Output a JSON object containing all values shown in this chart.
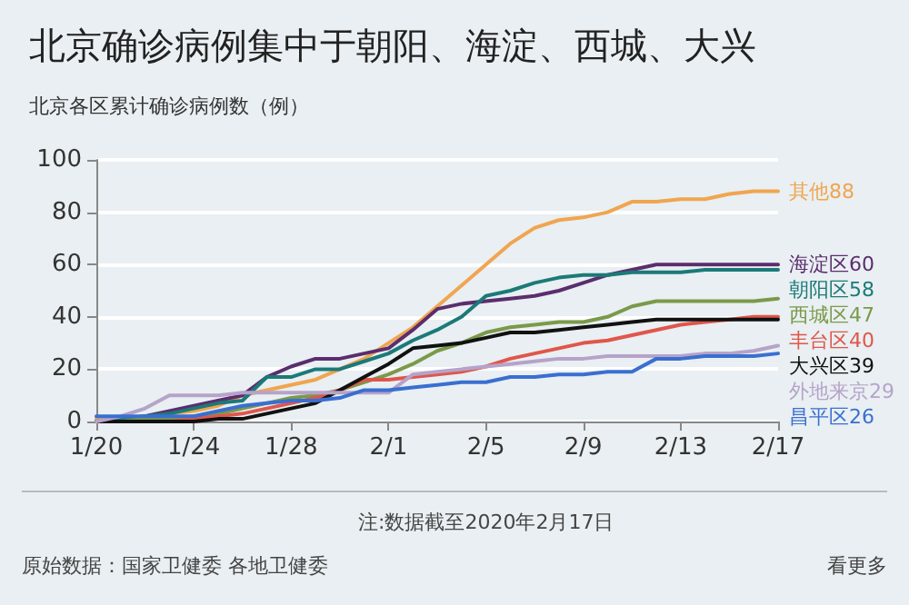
{
  "chart_data": {
    "type": "line",
    "title": "北京确诊病例集中于朝阳、海淀、西城、大兴",
    "subtitle": "北京各区累计确诊病例数（例）",
    "x": [
      "--01-20",
      "--01-21",
      "--01-22",
      "--01-23",
      "--01-24",
      "--01-25",
      "--01-26",
      "--01-27",
      "--01-28",
      "--01-29",
      "--01-30",
      "--01-31",
      "--02-01",
      "--02-02",
      "--02-03",
      "--02-04",
      "--02-05",
      "--02-06",
      "--02-07",
      "--02-08",
      "--02-09",
      "--02-10",
      "--02-11",
      "--02-12",
      "--02-13",
      "--02-14",
      "--02-15",
      "--02-16",
      "--02-17"
    ],
    "series": [
      {
        "name": "其他88",
        "color": "#f0a54f",
        "values": [
          1,
          1,
          2,
          3,
          4,
          6,
          10,
          12,
          14,
          16,
          20,
          24,
          30,
          36,
          44,
          52,
          60,
          68,
          74,
          77,
          78,
          80,
          84,
          84,
          85,
          85,
          87,
          88,
          88
        ]
      },
      {
        "name": "海淀区60",
        "color": "#5b2d6e",
        "values": [
          0,
          1,
          2,
          4,
          6,
          8,
          10,
          17,
          21,
          24,
          24,
          26,
          28,
          35,
          43,
          45,
          46,
          47,
          48,
          50,
          53,
          56,
          58,
          60,
          60,
          60,
          60,
          60,
          60
        ]
      },
      {
        "name": "朝阳区58",
        "color": "#1b7a78",
        "values": [
          0,
          1,
          2,
          3,
          5,
          7,
          8,
          17,
          17,
          20,
          20,
          23,
          26,
          31,
          35,
          40,
          48,
          50,
          53,
          55,
          56,
          56,
          57,
          57,
          57,
          58,
          58,
          58,
          58
        ]
      },
      {
        "name": "西城区47",
        "color": "#7a9a4a",
        "values": [
          0,
          0,
          1,
          1,
          2,
          3,
          5,
          7,
          9,
          10,
          12,
          15,
          18,
          22,
          27,
          30,
          34,
          36,
          37,
          38,
          38,
          40,
          44,
          46,
          46,
          46,
          46,
          46,
          47
        ]
      },
      {
        "name": "丰台区40",
        "color": "#e0564b",
        "values": [
          0,
          0,
          0,
          0,
          1,
          2,
          3,
          5,
          7,
          9,
          12,
          16,
          16,
          17,
          18,
          19,
          21,
          24,
          26,
          28,
          30,
          31,
          33,
          35,
          37,
          38,
          39,
          40,
          40
        ]
      },
      {
        "name": "大兴区39",
        "color": "#111111",
        "values": [
          0,
          0,
          0,
          0,
          0,
          1,
          1,
          3,
          5,
          7,
          12,
          17,
          22,
          28,
          29,
          30,
          32,
          34,
          34,
          35,
          36,
          37,
          38,
          39,
          39,
          39,
          39,
          39,
          39
        ]
      },
      {
        "name": "外地来京29",
        "color": "#b6a3c9",
        "values": [
          0,
          2,
          5,
          10,
          10,
          10,
          11,
          11,
          11,
          11,
          11,
          11,
          11,
          18,
          19,
          20,
          21,
          22,
          23,
          24,
          24,
          25,
          25,
          25,
          25,
          26,
          26,
          27,
          29
        ]
      },
      {
        "name": "昌平区26",
        "color": "#3a6fd1",
        "values": [
          2,
          2,
          2,
          2,
          2,
          4,
          6,
          7,
          8,
          8,
          9,
          12,
          12,
          13,
          14,
          15,
          15,
          17,
          17,
          18,
          18,
          19,
          19,
          24,
          24,
          25,
          25,
          25,
          26
        ]
      }
    ],
    "xlim": [
      "--01-20",
      "--02-17"
    ],
    "xticks": [
      {
        "value": "--01-20",
        "label": "1/20"
      },
      {
        "value": "--01-24",
        "label": "1/24"
      },
      {
        "value": "--01-28",
        "label": "1/28"
      },
      {
        "value": "--02-01",
        "label": "2/1"
      },
      {
        "value": "--02-05",
        "label": "2/5"
      },
      {
        "value": "--02-09",
        "label": "2/9"
      },
      {
        "value": "--02-13",
        "label": "2/13"
      },
      {
        "value": "--02-17",
        "label": "2/17"
      }
    ],
    "ylim": [
      0,
      100
    ],
    "yticks": [
      0,
      20,
      40,
      60,
      80,
      100
    ],
    "grid": "y",
    "legend": false,
    "marker": "none",
    "line_style": "solid",
    "annotations": [
      "注:数据截至2020年2月17日",
      "原始数据：国家卫健委 各地卫健委",
      "看更多"
    ]
  }
}
